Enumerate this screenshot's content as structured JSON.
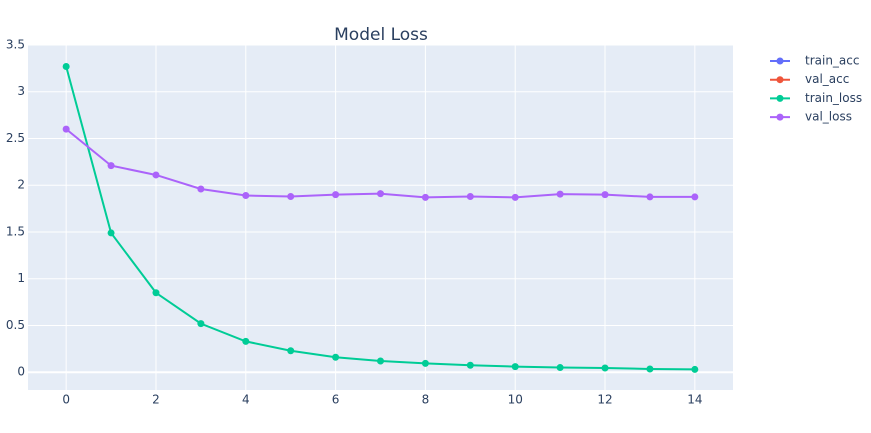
{
  "chart_data": {
    "type": "line",
    "title": "Model Loss",
    "x": [
      0,
      1,
      2,
      3,
      4,
      5,
      6,
      7,
      8,
      9,
      10,
      11,
      12,
      13,
      14
    ],
    "series": [
      {
        "name": "train_acc",
        "color": "#636efa",
        "values": [
          null,
          null,
          null,
          null,
          null,
          null,
          null,
          null,
          null,
          null,
          null,
          null,
          null,
          null,
          null
        ]
      },
      {
        "name": "val_acc",
        "color": "#ef553b",
        "values": [
          null,
          null,
          null,
          null,
          null,
          null,
          null,
          null,
          null,
          null,
          null,
          null,
          null,
          null,
          null
        ]
      },
      {
        "name": "train_loss",
        "color": "#00cc96",
        "values": [
          3.27,
          1.49,
          0.85,
          0.52,
          0.33,
          0.23,
          0.16,
          0.12,
          0.095,
          0.075,
          0.06,
          0.05,
          0.045,
          0.035,
          0.03
        ]
      },
      {
        "name": "val_loss",
        "color": "#ab63fa",
        "values": [
          2.6,
          2.21,
          2.11,
          1.96,
          1.89,
          1.88,
          1.9,
          1.91,
          1.87,
          1.88,
          1.87,
          1.905,
          1.9,
          1.875,
          1.875
        ]
      }
    ],
    "xlim": [
      -0.85,
      14.85
    ],
    "xticks": [
      0,
      2,
      4,
      6,
      8,
      10,
      12,
      14
    ],
    "ylim": [
      -0.19,
      3.5
    ],
    "yticks": [
      0,
      0.5,
      1,
      1.5,
      2,
      2.5,
      3,
      3.5
    ],
    "grid": true,
    "legend": "right"
  }
}
